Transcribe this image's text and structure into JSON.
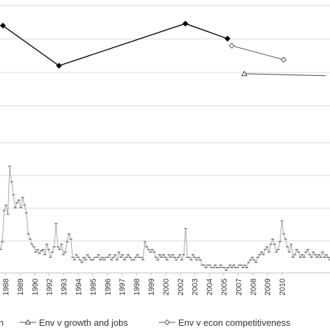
{
  "chart_data": {
    "type": "line",
    "grid": true,
    "panels": [
      {
        "name": "upper",
        "ylim": [
          0,
          100
        ],
        "series": [
          {
            "name": "",
            "color": "#000000",
            "marker": "diamond-filled",
            "points": [
              [
                1988,
                80
              ],
              [
                1992,
                40
              ],
              [
                2001,
                82
              ],
              [
                2004,
                67
              ]
            ]
          },
          {
            "name": "Env v econ competitiveness",
            "color": "#555555",
            "marker": "diamond-open",
            "points": [
              [
                2004.3,
                60
              ],
              [
                2008,
                46
              ]
            ]
          },
          {
            "name": "Env v growth and jobs",
            "color": "#444444",
            "marker": "triangle",
            "points": [
              [
                2005.2,
                32
              ],
              [
                2011,
                30
              ]
            ]
          }
        ]
      },
      {
        "name": "lower",
        "ylim": [
          0,
          100
        ],
        "series": [
          {
            "name": "",
            "color": "#9a9a9a",
            "marker": "dash",
            "values": [
              20,
              18,
              24,
              48,
              52,
              45,
              82,
              70,
              60,
              50,
              54,
              56,
              50,
              58,
              52,
              46,
              30,
              26,
              22,
              20,
              16,
              18,
              15,
              17,
              18,
              14,
              22,
              18,
              12,
              16,
              20,
              38,
              20,
              18,
              22,
              14,
              16,
              24,
              30,
              26,
              12,
              10,
              14,
              12,
              10,
              8,
              12,
              10,
              14,
              12,
              10,
              10,
              12,
              12,
              14,
              10,
              12,
              10,
              12,
              12,
              14,
              10,
              12,
              14,
              10,
              16,
              12,
              14,
              10,
              12,
              14,
              12,
              10,
              10,
              12,
              14,
              12,
              12,
              10,
              24,
              20,
              18,
              16,
              18,
              16,
              12,
              10,
              14,
              12,
              14,
              12,
              10,
              14,
              12,
              14,
              12,
              10,
              12,
              14,
              10,
              14,
              34,
              12,
              12,
              10,
              14,
              12,
              10,
              12,
              10,
              6,
              6,
              4,
              6,
              6,
              4,
              4,
              6,
              4,
              4,
              6,
              4,
              4,
              2,
              4,
              6,
              4,
              6,
              4,
              4,
              6,
              6,
              4,
              6,
              4,
              8,
              10,
              12,
              10,
              8,
              12,
              14,
              16,
              14,
              18,
              20,
              16,
              22,
              26,
              22,
              16,
              18,
              24,
              40,
              30,
              26,
              20,
              16,
              22,
              12,
              14,
              18,
              16,
              12,
              14,
              12,
              16,
              18,
              14,
              12,
              16,
              14,
              12,
              14,
              12,
              16,
              12,
              14,
              12,
              10
            ]
          }
        ]
      }
    ],
    "x_tick_labels": [
      "1988",
      "1989",
      "1990",
      "1992",
      "1993",
      "1994",
      "1995",
      "1996",
      "1997",
      "1998",
      "1999",
      "2000",
      "2002",
      "2003",
      "2004",
      "2005",
      "2007",
      "2008",
      "2009",
      "2010"
    ],
    "legend": {
      "placement": "bottom",
      "items": [
        {
          "label": "n",
          "marker": "none"
        },
        {
          "label": "Env v growth and jobs",
          "marker": "triangle"
        },
        {
          "label": "Env v econ competitiveness",
          "marker": "diamond-open"
        }
      ]
    }
  }
}
